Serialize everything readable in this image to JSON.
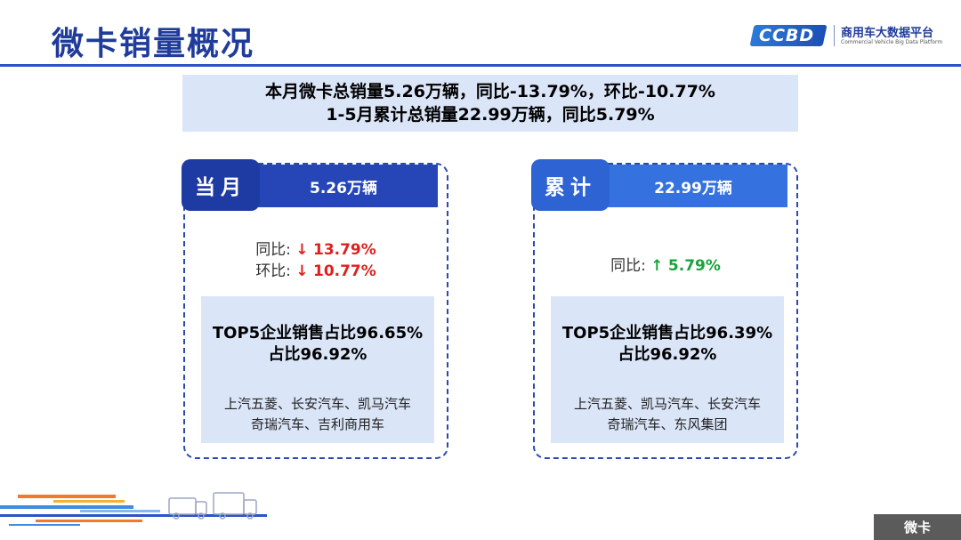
{
  "header": {
    "title": "微卡销量概况",
    "logo_cn": "商用车大数据平台",
    "logo_en": "Commercial Vehicle Big Data Platform",
    "logo_mark": "CCBD"
  },
  "summary": {
    "line1": "本月微卡总销量5.26万辆，同比-13.79%，环比-10.77%",
    "line2": "1-5月累计总销量22.99万辆，同比5.79%"
  },
  "monthly": {
    "tab": "当月",
    "total": "5.26万辆",
    "yoy_label": "同比:",
    "yoy_arrow": "↓",
    "yoy_value": "13.79%",
    "mom_label": "环比:",
    "mom_arrow": "↓",
    "mom_value": "10.77%",
    "top5_line1": "TOP5企业销售占比96.65%",
    "top5_line2": "占比96.92%",
    "companies_line1": "上汽五菱、长安汽车、凯马汽车",
    "companies_line2": "奇瑞汽车、吉利商用车"
  },
  "cumulative": {
    "tab": "累计",
    "total": "22.99万辆",
    "yoy_label": "同比:",
    "yoy_arrow": "↑",
    "yoy_value": "5.79%",
    "top5_line1": "TOP5企业销售占比96.39%",
    "top5_line2": "占比96.92%",
    "companies_line1": "上汽五菱、凯马汽车、长安汽车",
    "companies_line2": "奇瑞汽车、东风集团"
  },
  "footer": {
    "tag": "微卡"
  },
  "colors": {
    "primary": "#1f3b9b",
    "accent": "#2b54c7",
    "panel": "#dbe5f8",
    "down": "#e01f1f",
    "up": "#18a33c"
  }
}
